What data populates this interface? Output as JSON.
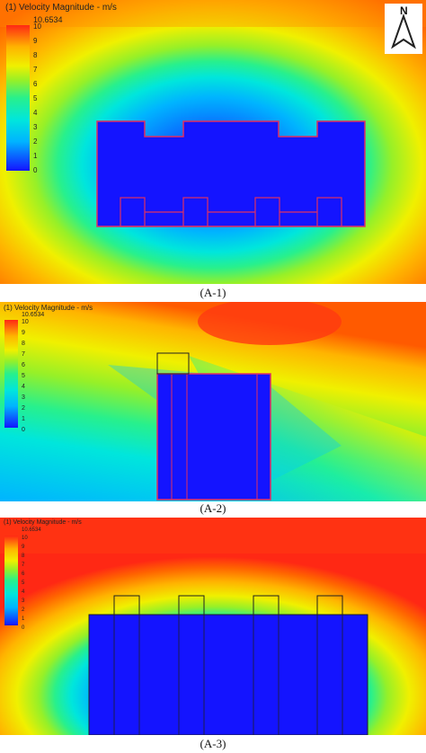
{
  "legend_title": "(1) Velocity Magnitude - m/s",
  "legend_max": "10.6534",
  "legend_ticks": [
    "10",
    "9",
    "8",
    "7",
    "6",
    "5",
    "4",
    "3",
    "2",
    "1",
    "0"
  ],
  "compass_label": "N",
  "colormap": [
    "#1414ff",
    "#0a64ff",
    "#00b4ff",
    "#00e6dc",
    "#28f08c",
    "#96f028",
    "#f0f000",
    "#ffb400",
    "#ff6400",
    "#ff2814"
  ],
  "panels": [
    {
      "id": "A-1",
      "caption": "(A-1)"
    },
    {
      "id": "A-2",
      "caption": "(A-2)"
    },
    {
      "id": "A-3",
      "caption": "(A-3)"
    }
  ]
}
